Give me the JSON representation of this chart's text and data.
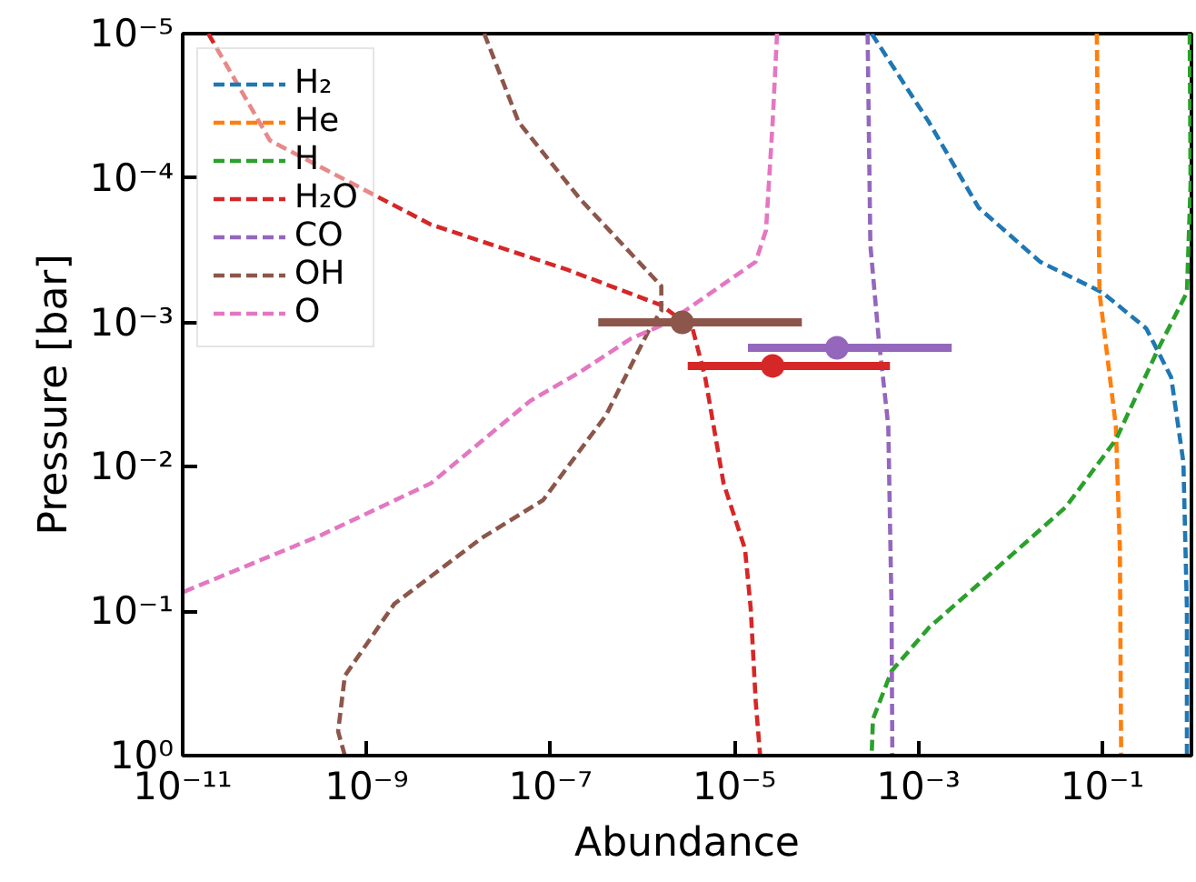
{
  "chart_data": {
    "type": "line",
    "xlabel": "Abundance",
    "ylabel": "Pressure [bar]",
    "log": "xy",
    "line_style": "dashed",
    "marker": "none",
    "legend": "top left",
    "grid": false,
    "xlim": [
      1e-11,
      0.93
    ],
    "ylim": [
      1,
      1e-05
    ],
    "xticks": [
      {
        "value": 1e-11,
        "label": "10⁻¹¹"
      },
      {
        "value": 1e-09,
        "label": "10⁻⁹"
      },
      {
        "value": 1e-07,
        "label": "10⁻⁷"
      },
      {
        "value": 1e-05,
        "label": "10⁻⁵"
      },
      {
        "value": 0.001,
        "label": "10⁻³"
      },
      {
        "value": 0.1,
        "label": "10⁻¹"
      }
    ],
    "yticks": [
      {
        "value": 1e-05,
        "label": "10⁻⁵"
      },
      {
        "value": 0.0001,
        "label": "10⁻⁴"
      },
      {
        "value": 0.001,
        "label": "10⁻³"
      },
      {
        "value": 0.01,
        "label": "10⁻²"
      },
      {
        "value": 0.1,
        "label": "10⁻¹"
      },
      {
        "value": 1,
        "label": "10⁰"
      }
    ],
    "series": [
      {
        "name": "H₂",
        "color": "#1f77b4",
        "x": [
          0.00031,
          0.0013,
          0.0045,
          0.021,
          0.1,
          0.3,
          0.56,
          0.76,
          0.83,
          0.83
        ],
        "values": [
          1e-05,
          4.1e-05,
          0.00016,
          0.00038,
          0.00062,
          0.0011,
          0.0024,
          0.0093,
          0.095,
          1
        ]
      },
      {
        "name": "He",
        "color": "#ff7f0e",
        "x": [
          0.087,
          0.093,
          0.14,
          0.155,
          0.16
        ],
        "values": [
          1e-05,
          0.00062,
          0.0052,
          0.037,
          1
        ]
      },
      {
        "name": "H",
        "color": "#2ca02c",
        "x": [
          0.89,
          0.91,
          0.83,
          0.41,
          0.14,
          0.04,
          0.0052,
          0.0013,
          0.00051,
          0.00032,
          0.00031
        ],
        "values": [
          1e-05,
          0.00011,
          0.00062,
          0.0015,
          0.0065,
          0.019,
          0.06,
          0.13,
          0.26,
          0.56,
          1
        ]
      },
      {
        "name": "H₂O",
        "color": "#d62728",
        "x": [
          1.9e-11,
          8.9e-11,
          5e-09,
          1.5e-07,
          1.6e-06,
          3.5e-06,
          4.8e-06,
          7.6e-06,
          1.3e-05,
          1.5e-05,
          1.7e-05,
          1.9e-05
        ],
        "values": [
          1e-05,
          5.5e-05,
          0.00021,
          0.00043,
          0.00076,
          0.0011,
          0.0024,
          0.013,
          0.037,
          0.095,
          0.42,
          1
        ]
      },
      {
        "name": "CO",
        "color": "#9467bd",
        "x": [
          0.00028,
          0.0003,
          0.00037,
          0.00047,
          0.00051,
          0.00052
        ],
        "values": [
          1e-05,
          0.00029,
          0.0013,
          0.0052,
          0.095,
          1
        ]
      },
      {
        "name": "OH",
        "color": "#8c564b",
        "x": [
          1.9e-08,
          4.5e-08,
          2.1e-07,
          1.6e-06,
          1.6e-06,
          1.2e-06,
          4e-07,
          8.3e-08,
          1.8e-08,
          2e-09,
          5.8e-10,
          4.9e-10,
          5.8e-10
        ],
        "values": [
          1e-05,
          4.1e-05,
          0.00014,
          0.00056,
          0.00083,
          0.0011,
          0.0044,
          0.017,
          0.031,
          0.089,
          0.28,
          0.68,
          1
        ]
      },
      {
        "name": "O",
        "color": "#e377c2",
        "x": [
          2.9e-05,
          2.6e-05,
          2.2e-05,
          1.7e-05,
          1.9e-06,
          7.4e-07,
          2.1e-07,
          6e-08,
          5e-09,
          3.1e-10,
          1.1e-11,
          1e-11
        ],
        "values": [
          1e-05,
          4.1e-05,
          0.00023,
          0.00038,
          0.001,
          0.0013,
          0.0022,
          0.0035,
          0.013,
          0.03,
          0.072,
          0.075
        ]
      },
      {
        "type": "scatter",
        "marker": "circle",
        "color": "#8c564b",
        "x": [
          2.7e-06
        ],
        "values": [
          0.001
        ],
        "xerrors": [
          [
            3.3e-07,
            5.4e-05
          ]
        ]
      },
      {
        "type": "scatter",
        "marker": "circle",
        "color": "#d62728",
        "x": [
          2.6e-05
        ],
        "values": [
          0.002
        ],
        "xerrors": [
          [
            3.1e-06,
            0.00049
          ]
        ]
      },
      {
        "type": "scatter",
        "marker": "circle",
        "color": "#9467bd",
        "x": [
          0.00013
        ],
        "values": [
          0.0015
        ],
        "xerrors": [
          [
            1.4e-05,
            0.0023
          ]
        ]
      }
    ]
  }
}
